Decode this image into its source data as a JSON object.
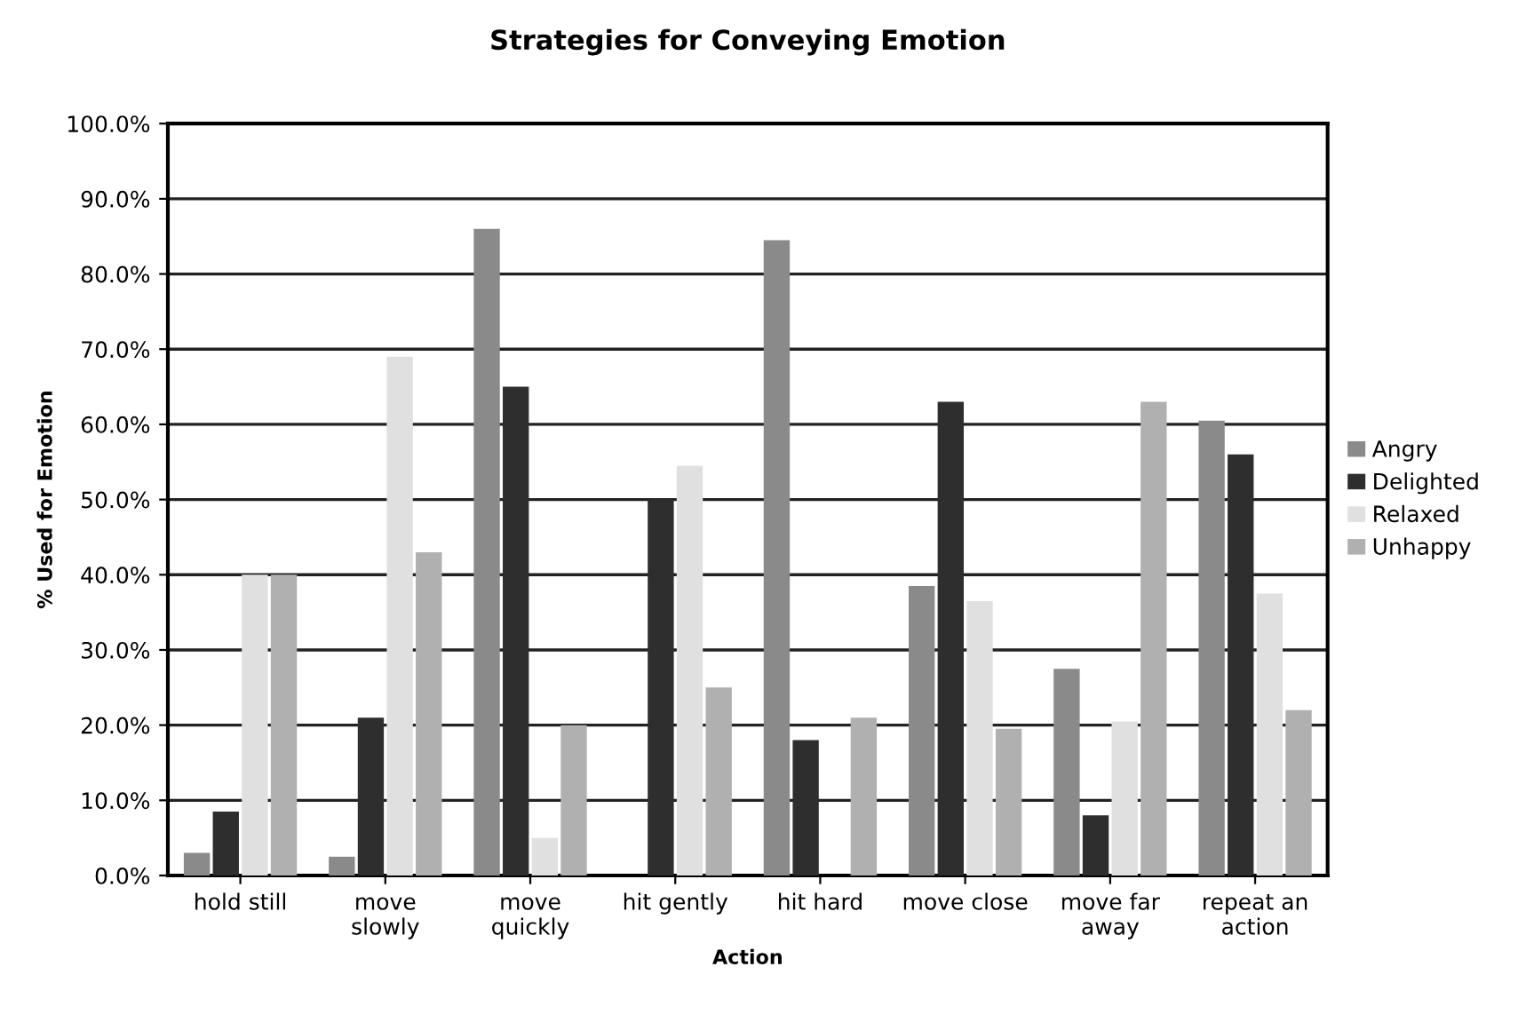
{
  "chart_data": {
    "type": "bar",
    "title": "Strategies for Conveying Emotion",
    "xlabel": "Action",
    "ylabel": "% Used for Emotion",
    "categories": [
      "hold still",
      "move\nslowly",
      "move\nquickly",
      "hit gently",
      "hit hard",
      "move close",
      "move far\naway",
      "repeat an\naction"
    ],
    "series": [
      {
        "name": "Angry",
        "color": "#8a8a8a",
        "values": [
          3,
          2.5,
          86,
          0,
          84.5,
          38.5,
          27.5,
          60.5
        ]
      },
      {
        "name": "Delighted",
        "color": "#2e2e2e",
        "values": [
          8.5,
          21,
          65,
          50,
          18,
          63,
          8,
          56
        ]
      },
      {
        "name": "Relaxed",
        "color": "#e0e0e0",
        "values": [
          40,
          69,
          5,
          54.5,
          0,
          36.5,
          20.5,
          37.5
        ]
      },
      {
        "name": "Unhappy",
        "color": "#b0b0b0",
        "values": [
          40,
          43,
          20,
          25,
          21,
          19.5,
          63,
          22
        ]
      }
    ],
    "ylim": [
      0,
      100
    ],
    "yticks": [
      {
        "value": 0,
        "label": "0.0%"
      },
      {
        "value": 10,
        "label": "10.0%"
      },
      {
        "value": 20,
        "label": "20.0%"
      },
      {
        "value": 30,
        "label": "30.0%"
      },
      {
        "value": 40,
        "label": "40.0%"
      },
      {
        "value": 50,
        "label": "50.0%"
      },
      {
        "value": 60,
        "label": "60.0%"
      },
      {
        "value": 70,
        "label": "70.0%"
      },
      {
        "value": 80,
        "label": "80.0%"
      },
      {
        "value": 90,
        "label": "90.0%"
      },
      {
        "value": 100,
        "label": "100.0%"
      }
    ],
    "grid": "y",
    "legend": "right"
  }
}
